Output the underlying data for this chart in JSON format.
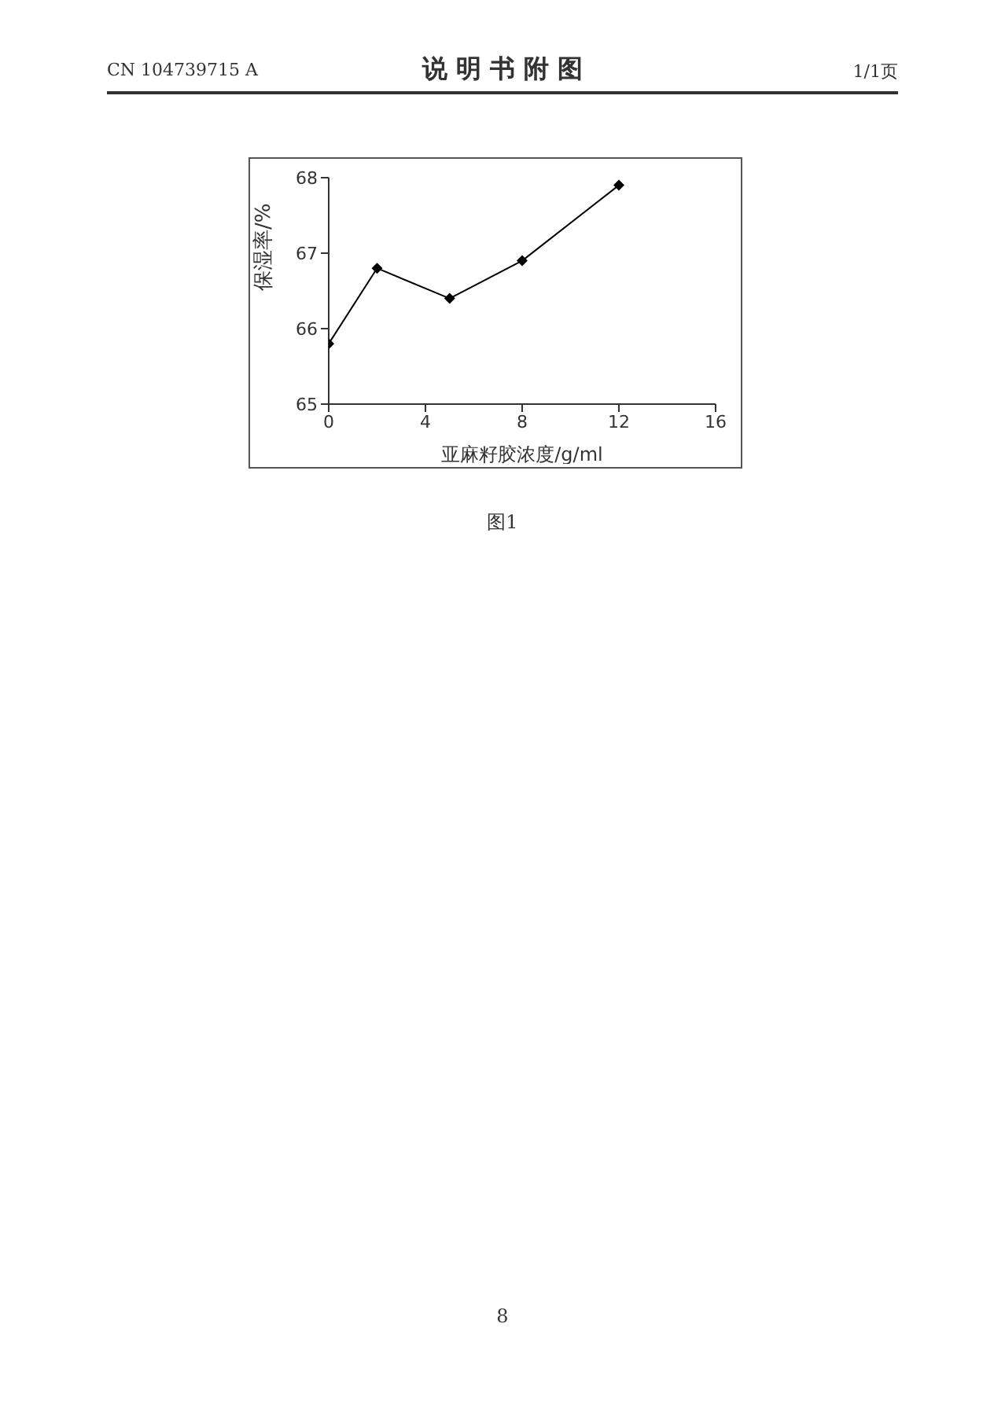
{
  "chart_data": {
    "type": "line",
    "title": "说 明 书 附 图",
    "xlabel": "亚麻籽胶浓度/g/ml",
    "ylabel": "保湿率/%",
    "annotations": [
      "CN 104739715 A",
      "1/1页",
      "图1",
      "8"
    ],
    "x": [
      0,
      2,
      5,
      8,
      12
    ],
    "series": [
      {
        "color": "#000000",
        "values": [
          65.8,
          66.8,
          66.4,
          66.9,
          67.9
        ]
      }
    ],
    "xlim": [
      0,
      16
    ],
    "xticks": [
      0,
      4,
      8,
      12,
      16
    ],
    "ylim": [
      65,
      68
    ],
    "yticks": [
      65,
      66,
      67,
      68
    ],
    "grid": false,
    "legend": false,
    "marker": "diamond",
    "line_style": "solid"
  }
}
